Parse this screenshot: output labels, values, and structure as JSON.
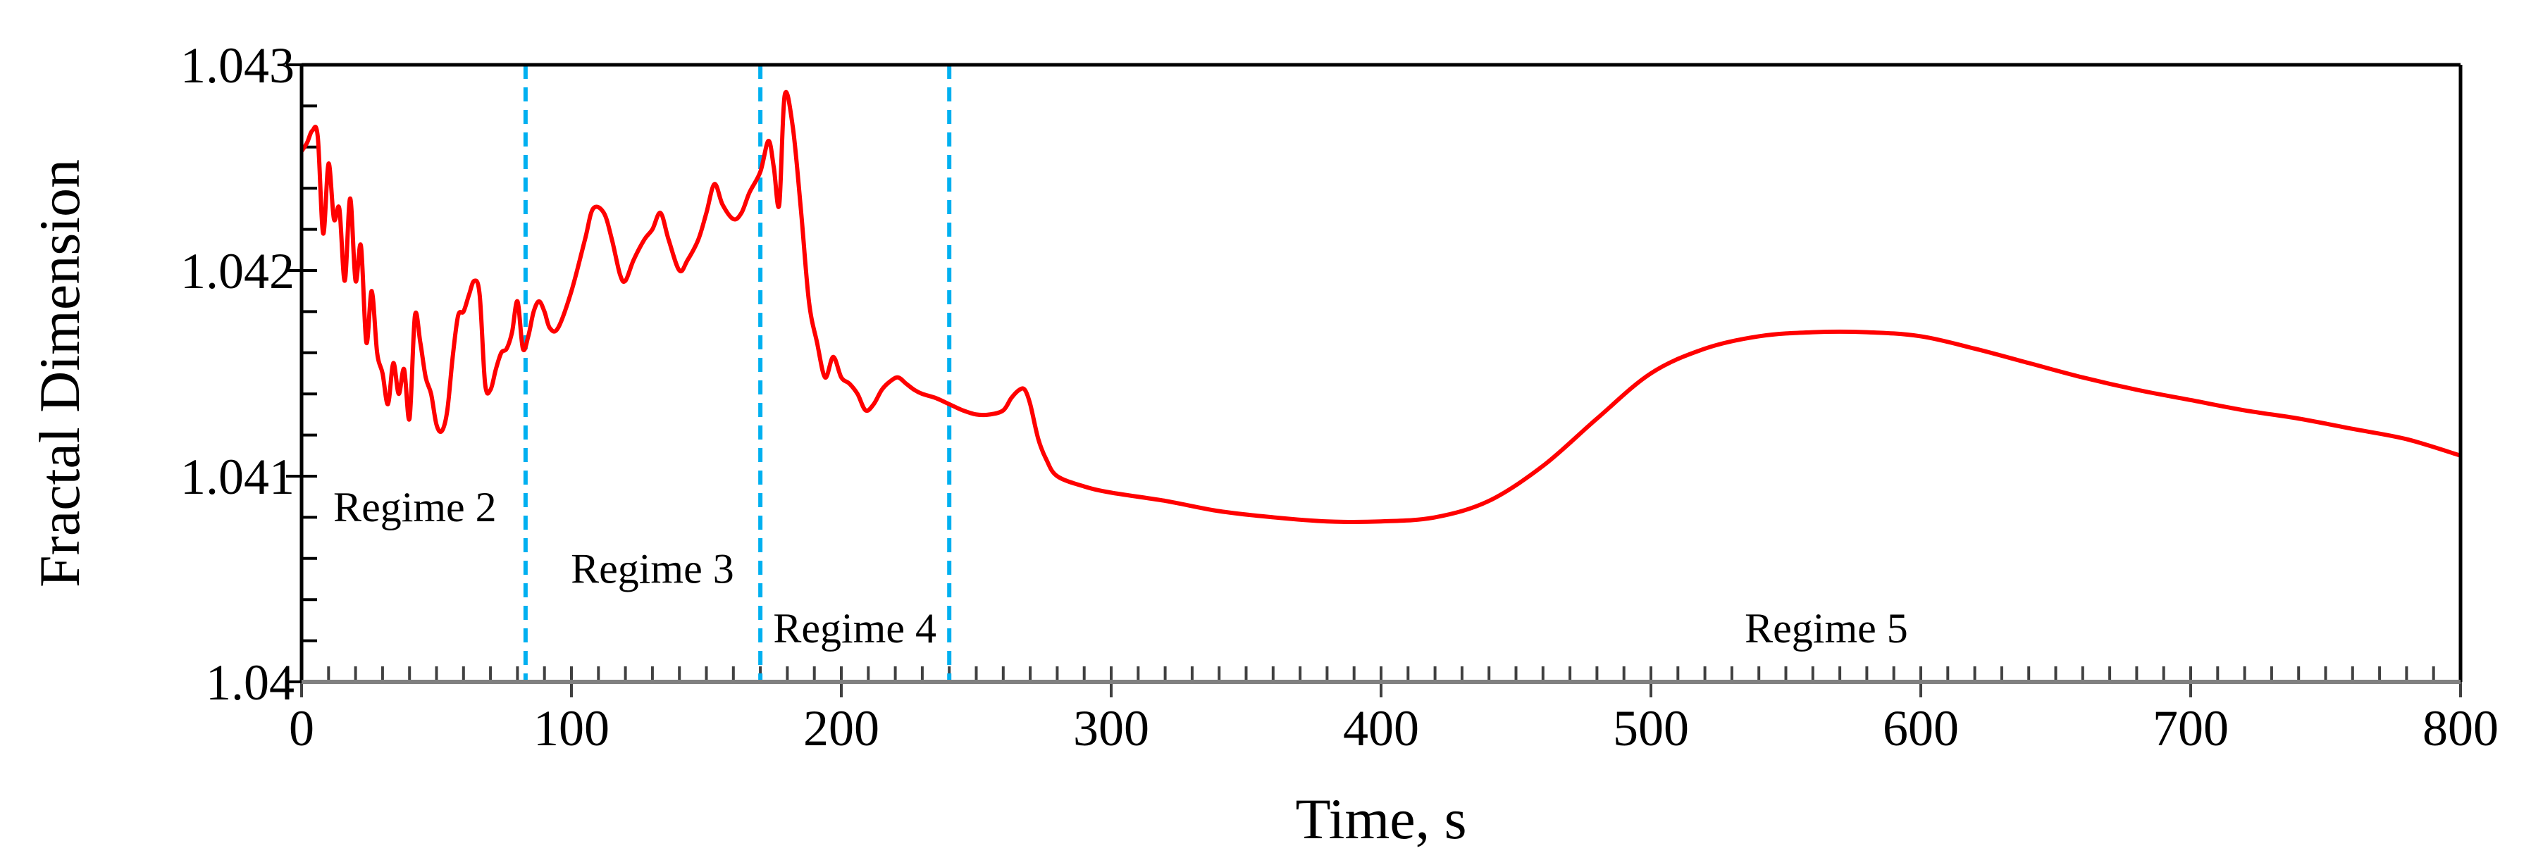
{
  "chart_data": {
    "type": "line",
    "title": "",
    "xlabel": "Time, s",
    "ylabel": "Fractal Dimension",
    "xlim": [
      0,
      800
    ],
    "ylim": [
      1.04,
      1.043
    ],
    "grid": false,
    "x_ticks": [
      0,
      100,
      200,
      300,
      400,
      500,
      600,
      700,
      800
    ],
    "x_tick_labels": [
      "0",
      "100",
      "200",
      "300",
      "400",
      "500",
      "600",
      "700",
      "800"
    ],
    "y_ticks": [
      1.04,
      1.041,
      1.042,
      1.043
    ],
    "y_tick_labels": [
      "1.04",
      "1.041",
      "1.042",
      "1.043"
    ],
    "x_minor_step": 10,
    "y_minor_step": 0.0002,
    "colors": {
      "series": "#ff0000",
      "regime_line": "#00b0f0",
      "axis": "#000000",
      "bottom_axis": "#808080"
    },
    "vertical_lines": [
      {
        "x": 83,
        "style": "dashed"
      },
      {
        "x": 170,
        "style": "dashed"
      },
      {
        "x": 240,
        "style": "dashed"
      }
    ],
    "annotations": [
      {
        "text": "Regime 2",
        "x": 42,
        "y": 1.04085
      },
      {
        "text": "Regime 3",
        "x": 130,
        "y": 1.04055
      },
      {
        "text": "Regime 4",
        "x": 205,
        "y": 1.04026
      },
      {
        "text": "Regime 5",
        "x": 565,
        "y": 1.04026
      }
    ],
    "series": [
      {
        "name": "Fractal Dimension",
        "x": [
          0,
          2,
          4,
          6,
          8,
          10,
          12,
          14,
          16,
          18,
          20,
          22,
          24,
          26,
          28,
          30,
          32,
          34,
          36,
          38,
          40,
          42,
          44,
          46,
          48,
          50,
          52,
          54,
          56,
          58,
          60,
          62,
          64,
          66,
          68,
          70,
          72,
          74,
          76,
          78,
          80,
          82,
          84,
          86,
          88,
          90,
          92,
          95,
          100,
          105,
          108,
          112,
          115,
          118,
          120,
          123,
          127,
          130,
          133,
          136,
          140,
          143,
          147,
          150,
          153,
          156,
          160,
          163,
          166,
          170,
          173,
          175,
          177,
          179,
          182,
          185,
          188,
          191,
          194,
          197,
          200,
          203,
          206,
          209,
          212,
          215,
          218,
          221,
          224,
          227,
          230,
          235,
          240,
          245,
          250,
          255,
          260,
          263,
          266,
          268,
          270,
          273,
          276,
          280,
          290,
          300,
          320,
          340,
          360,
          380,
          400,
          420,
          440,
          460,
          480,
          500,
          520,
          540,
          560,
          580,
          600,
          620,
          640,
          660,
          680,
          700,
          720,
          740,
          760,
          780,
          800
        ],
        "values": [
          1.04258,
          1.04262,
          1.04268,
          1.04265,
          1.04218,
          1.04252,
          1.04225,
          1.0423,
          1.04195,
          1.04235,
          1.04195,
          1.04212,
          1.04165,
          1.0419,
          1.0416,
          1.0415,
          1.04135,
          1.04155,
          1.0414,
          1.04152,
          1.04128,
          1.04178,
          1.04165,
          1.04148,
          1.0414,
          1.04125,
          1.04122,
          1.04132,
          1.04158,
          1.04178,
          1.0418,
          1.04188,
          1.04195,
          1.04188,
          1.04145,
          1.04142,
          1.04152,
          1.0416,
          1.04162,
          1.0417,
          1.04185,
          1.04162,
          1.04168,
          1.0418,
          1.04185,
          1.0418,
          1.04172,
          1.04172,
          1.0419,
          1.04215,
          1.0423,
          1.04228,
          1.04215,
          1.04198,
          1.04195,
          1.04205,
          1.04215,
          1.0422,
          1.04228,
          1.04215,
          1.042,
          1.04205,
          1.04215,
          1.04228,
          1.04242,
          1.04232,
          1.04225,
          1.04228,
          1.04238,
          1.04248,
          1.04263,
          1.0425,
          1.04232,
          1.04285,
          1.0427,
          1.0423,
          1.04185,
          1.04165,
          1.04148,
          1.04158,
          1.04148,
          1.04145,
          1.0414,
          1.04132,
          1.04135,
          1.04142,
          1.04146,
          1.04148,
          1.04145,
          1.04142,
          1.0414,
          1.04138,
          1.04135,
          1.04132,
          1.0413,
          1.0413,
          1.04132,
          1.04138,
          1.04142,
          1.04142,
          1.04135,
          1.04118,
          1.04108,
          1.041,
          1.04095,
          1.04092,
          1.04088,
          1.04083,
          1.0408,
          1.04078,
          1.04078,
          1.0408,
          1.04088,
          1.04105,
          1.04128,
          1.0415,
          1.04162,
          1.04168,
          1.0417,
          1.0417,
          1.04168,
          1.04162,
          1.04155,
          1.04148,
          1.04142,
          1.04137,
          1.04132,
          1.04128,
          1.04123,
          1.04118,
          1.0411
        ]
      }
    ]
  }
}
